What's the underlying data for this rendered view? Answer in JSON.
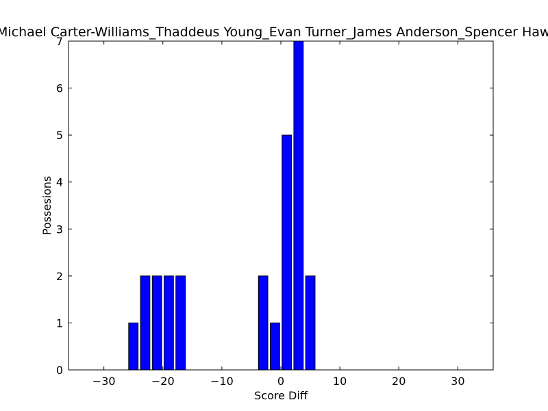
{
  "chart_data": {
    "type": "bar",
    "title": "Michael Carter-Williams_Thaddeus Young_Evan Turner_James Anderson_Spencer Hawes",
    "xlabel": "Score Diff",
    "ylabel": "Possesions",
    "xlim": [
      -36,
      36
    ],
    "ylim": [
      0,
      7
    ],
    "xticks": [
      -30,
      -20,
      -10,
      0,
      10,
      20,
      30
    ],
    "yticks": [
      0,
      1,
      2,
      3,
      4,
      5,
      6,
      7
    ],
    "bar_color": "#0000ff",
    "edge_color": "#000000",
    "grid": false,
    "bar_width": 1.6,
    "x": [
      -35,
      -33,
      -31,
      -29,
      -27,
      -25,
      -23,
      -21,
      -19,
      -17,
      -15,
      -13,
      -11,
      -9,
      -7,
      -5,
      -3,
      -1,
      1,
      3,
      5,
      7,
      9,
      11,
      13,
      15,
      17,
      19,
      21,
      23,
      25,
      27,
      29,
      31,
      33,
      35
    ],
    "values": [
      0,
      0,
      0,
      0,
      0,
      1,
      2,
      2,
      2,
      2,
      0,
      0,
      0,
      0,
      0,
      0,
      2,
      1,
      5,
      7,
      2,
      0,
      0,
      0,
      0,
      0,
      0,
      0,
      0,
      0,
      0,
      0,
      0,
      0,
      0,
      0
    ]
  }
}
